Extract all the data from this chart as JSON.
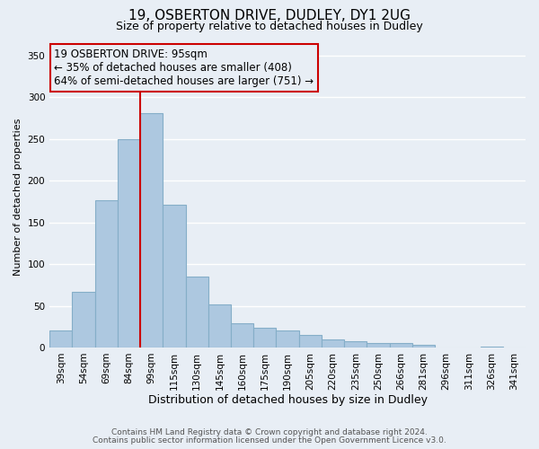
{
  "title1": "19, OSBERTON DRIVE, DUDLEY, DY1 2UG",
  "title2": "Size of property relative to detached houses in Dudley",
  "xlabel": "Distribution of detached houses by size in Dudley",
  "ylabel": "Number of detached properties",
  "footer1": "Contains HM Land Registry data © Crown copyright and database right 2024.",
  "footer2": "Contains public sector information licensed under the Open Government Licence v3.0.",
  "bar_labels": [
    "39sqm",
    "54sqm",
    "69sqm",
    "84sqm",
    "99sqm",
    "115sqm",
    "130sqm",
    "145sqm",
    "160sqm",
    "175sqm",
    "190sqm",
    "205sqm",
    "220sqm",
    "235sqm",
    "250sqm",
    "266sqm",
    "281sqm",
    "296sqm",
    "311sqm",
    "326sqm",
    "341sqm"
  ],
  "bar_values": [
    20,
    67,
    176,
    250,
    281,
    171,
    85,
    52,
    29,
    24,
    20,
    15,
    10,
    7,
    5,
    5,
    3,
    0,
    0,
    1,
    0
  ],
  "bar_color": "#adc8e0",
  "bar_edge_color": "#85aec8",
  "ylim": [
    0,
    360
  ],
  "yticks": [
    0,
    50,
    100,
    150,
    200,
    250,
    300,
    350
  ],
  "vline_x_index": 4,
  "vline_color": "#cc0000",
  "annotation_title": "19 OSBERTON DRIVE: 95sqm",
  "annotation_line1": "← 35% of detached houses are smaller (408)",
  "annotation_line2": "64% of semi-detached houses are larger (751) →",
  "box_edge_color": "#cc0000",
  "background_color": "#e8eef5",
  "grid_color": "#ffffff",
  "title1_fontsize": 11,
  "title2_fontsize": 9,
  "annotation_fontsize": 8.5,
  "ylabel_fontsize": 8,
  "xlabel_fontsize": 9,
  "tick_fontsize": 7.5,
  "footer_fontsize": 6.5
}
